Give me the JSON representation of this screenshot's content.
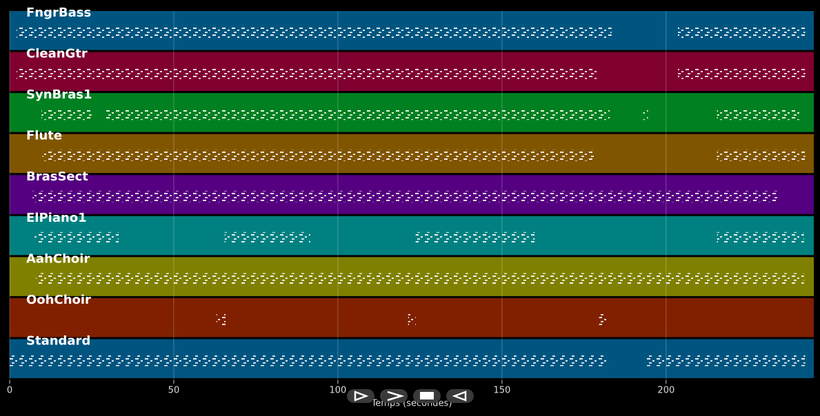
{
  "chart_data": {
    "type": "pianoroll",
    "xlabel": "Temps (secondes)",
    "xlim": [
      0,
      245
    ],
    "xticks": [
      0,
      50,
      100,
      150,
      200
    ],
    "grid": true,
    "series": [
      {
        "name": "FngrBass",
        "color": "#005580",
        "ranges": [
          [
            2.1,
            183.4
          ],
          [
            203.6,
            242.4
          ]
        ]
      },
      {
        "name": "CleanGtr",
        "color": "#800030",
        "ranges": [
          [
            2.1,
            179.4
          ],
          [
            203.6,
            242.4
          ]
        ]
      },
      {
        "name": "SynBras1",
        "color": "#008020",
        "ranges": [
          [
            9.7,
            25
          ],
          [
            29,
            182.8
          ],
          [
            193,
            194.5
          ],
          [
            215.5,
            241.2
          ]
        ]
      },
      {
        "name": "Flute",
        "color": "#805500",
        "ranges": [
          [
            10,
            178
          ],
          [
            215.5,
            242.4
          ]
        ]
      },
      {
        "name": "BrasSect",
        "color": "#550080",
        "ranges": [
          [
            7,
            234
          ]
        ]
      },
      {
        "name": "ElPiano1",
        "color": "#008080",
        "ranges": [
          [
            7.6,
            33.2
          ],
          [
            65.5,
            91.6
          ],
          [
            123.7,
            160
          ],
          [
            215.5,
            242
          ]
        ]
      },
      {
        "name": "AahChoir",
        "color": "#808000",
        "ranges": [
          [
            8,
            242
          ]
        ]
      },
      {
        "name": "OohChoir",
        "color": "#802000",
        "ranges": [
          [
            63,
            65.8
          ],
          [
            121.4,
            123.7
          ],
          [
            179.6,
            182
          ]
        ]
      },
      {
        "name": "Standard",
        "color": "#005580",
        "ranges": [
          [
            0,
            182
          ],
          [
            194,
            242.4
          ]
        ]
      }
    ]
  }
}
